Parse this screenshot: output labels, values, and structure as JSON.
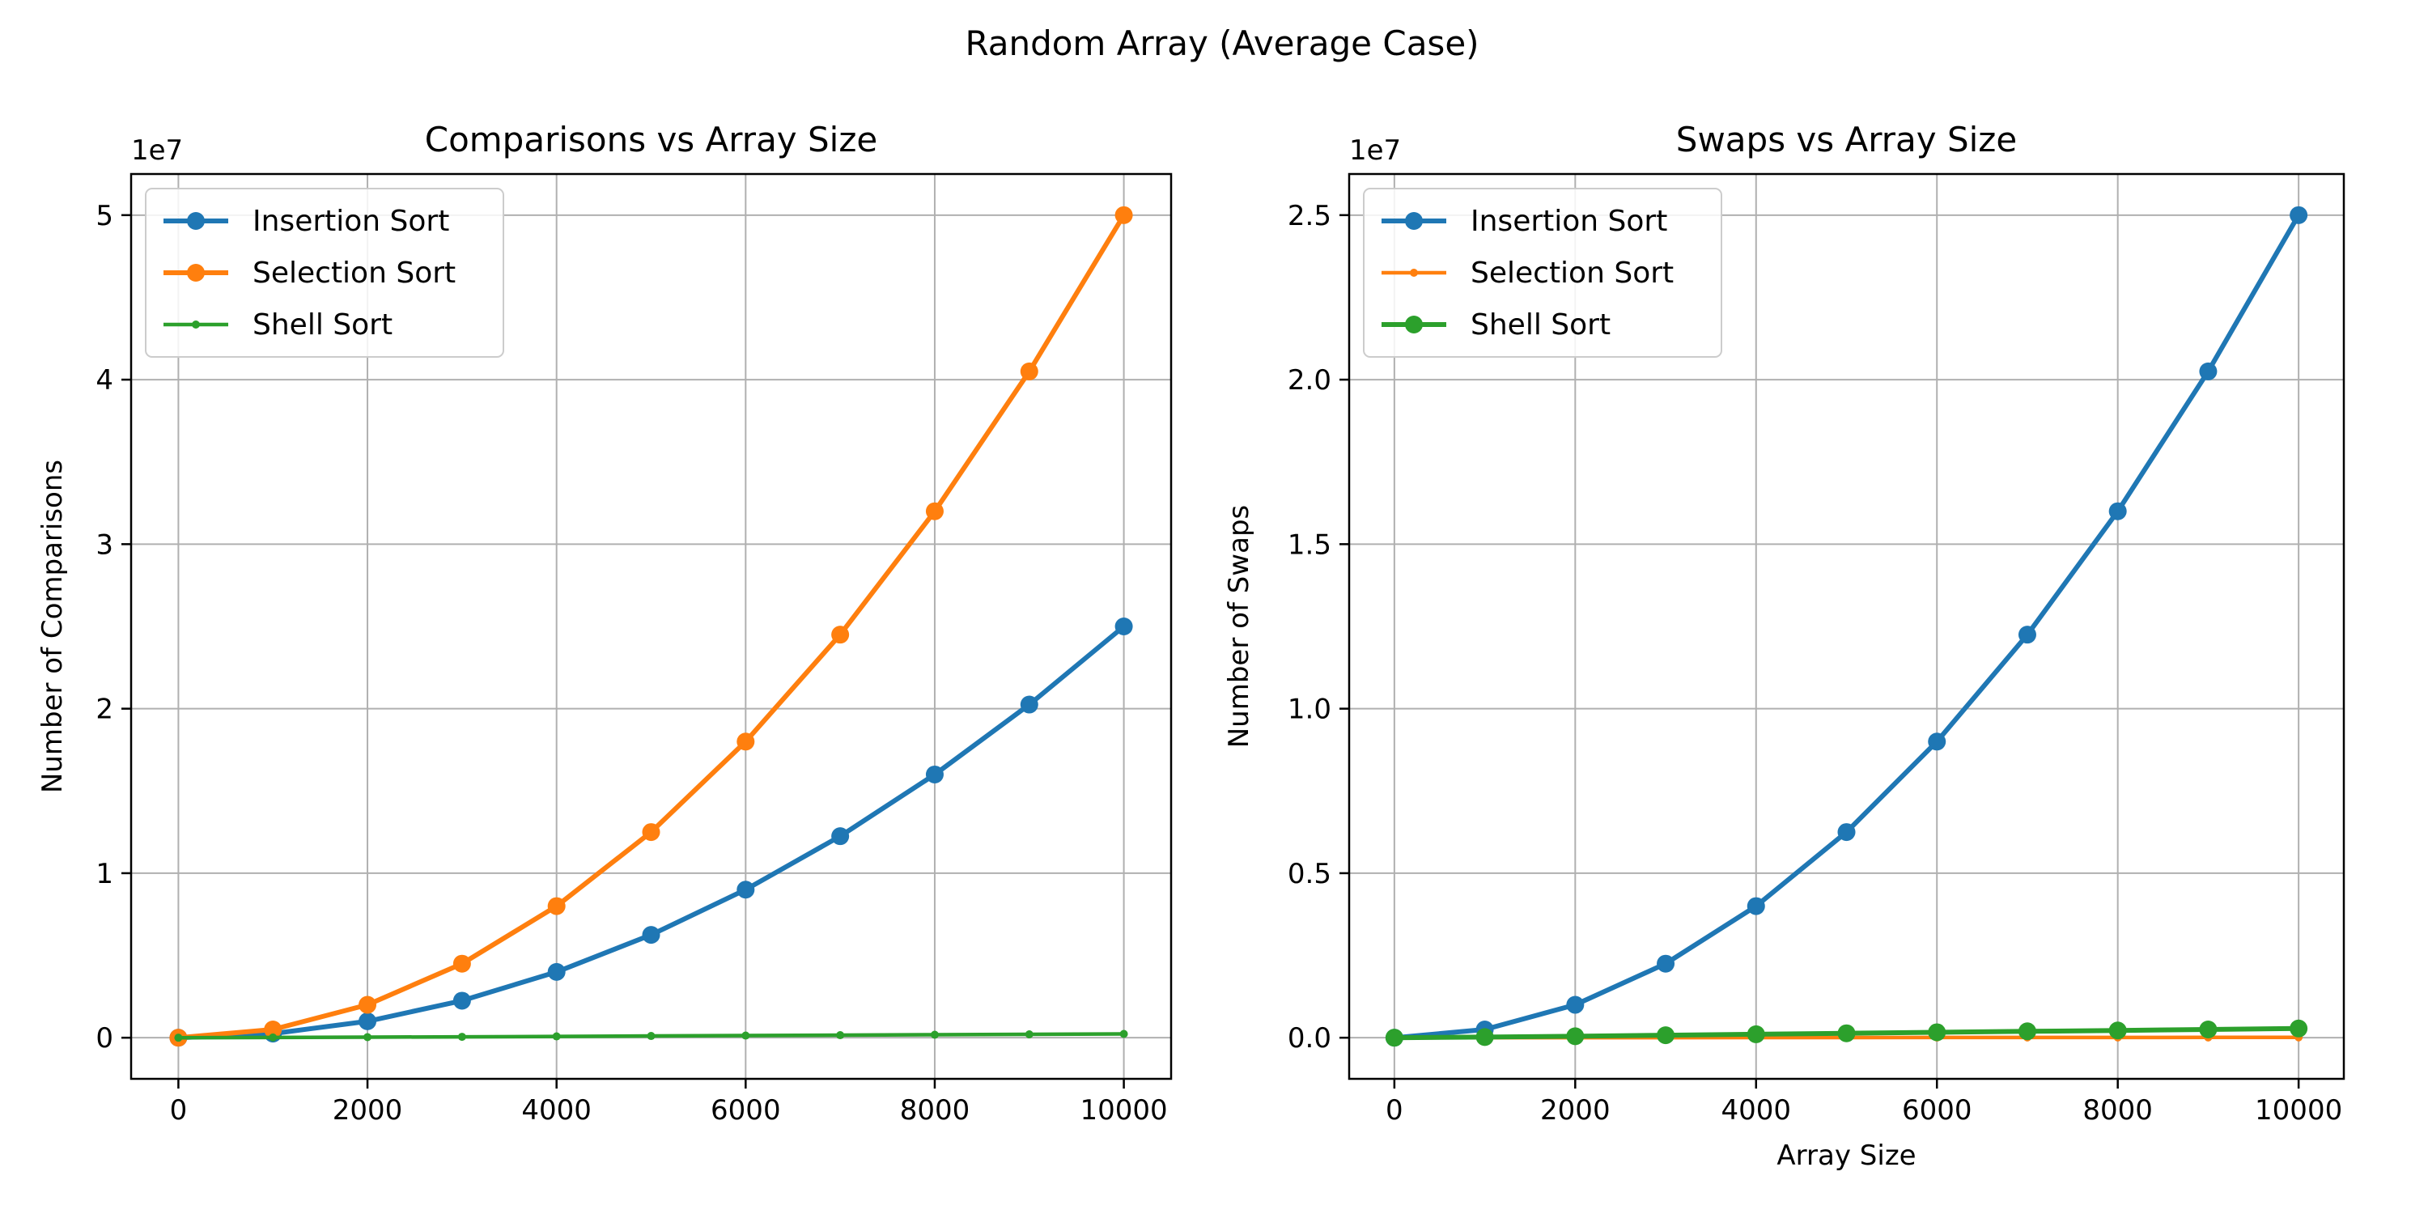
{
  "figure": {
    "title": "Random Array (Average Case)"
  },
  "colors": {
    "blue": "#1f77b4",
    "orange": "#ff7f0e",
    "green": "#2ca02c",
    "grid": "#b0b0b0"
  },
  "chart_data": [
    {
      "type": "line",
      "title": "Comparisons vs Array Size",
      "xlabel": "",
      "ylabel": "Number of Comparisons",
      "y_offset_label": "1e7",
      "xlim": [
        -500,
        10500
      ],
      "ylim": [
        -2500000,
        52500000
      ],
      "x_ticks": [
        0,
        2000,
        4000,
        6000,
        8000,
        10000
      ],
      "x_tick_labels": [
        "0",
        "2000",
        "4000",
        "6000",
        "8000",
        "10000"
      ],
      "y_ticks": [
        0,
        10000000,
        20000000,
        30000000,
        40000000,
        50000000
      ],
      "y_tick_labels": [
        "0",
        "1",
        "2",
        "3",
        "4",
        "5"
      ],
      "grid": true,
      "legend": "top-left",
      "series": [
        {
          "name": "Insertion Sort",
          "color": "#1f77b4",
          "marker": "large",
          "x": [
            0,
            1000,
            2000,
            3000,
            4000,
            5000,
            6000,
            7000,
            8000,
            9000,
            10000
          ],
          "y": [
            0,
            250000,
            1000000,
            2250000,
            4000000,
            6250000,
            9000000,
            12250000,
            16000000,
            20250000,
            25000000
          ]
        },
        {
          "name": "Selection Sort",
          "color": "#ff7f0e",
          "marker": "large",
          "x": [
            0,
            1000,
            2000,
            3000,
            4000,
            5000,
            6000,
            7000,
            8000,
            9000,
            10000
          ],
          "y": [
            0,
            500000,
            2000000,
            4500000,
            8000000,
            12500000,
            18000000,
            24500000,
            32000000,
            40500000,
            50000000
          ]
        },
        {
          "name": "Shell Sort",
          "color": "#2ca02c",
          "marker": "small",
          "x": [
            0,
            1000,
            2000,
            3000,
            4000,
            5000,
            6000,
            7000,
            8000,
            9000,
            10000
          ],
          "y": [
            0,
            15000,
            35000,
            55000,
            80000,
            105000,
            130000,
            155000,
            180000,
            205000,
            230000
          ]
        }
      ]
    },
    {
      "type": "line",
      "title": "Swaps vs Array Size",
      "xlabel": "Array Size",
      "ylabel": "Number of Swaps",
      "y_offset_label": "1e7",
      "xlim": [
        -500,
        10500
      ],
      "ylim": [
        -1250000,
        26250000
      ],
      "x_ticks": [
        0,
        2000,
        4000,
        6000,
        8000,
        10000
      ],
      "x_tick_labels": [
        "0",
        "2000",
        "4000",
        "6000",
        "8000",
        "10000"
      ],
      "y_ticks": [
        0,
        5000000,
        10000000,
        15000000,
        20000000,
        25000000
      ],
      "y_tick_labels": [
        "0.0",
        "0.5",
        "1.0",
        "1.5",
        "2.0",
        "2.5"
      ],
      "grid": true,
      "legend": "top-left",
      "series": [
        {
          "name": "Insertion Sort",
          "color": "#1f77b4",
          "marker": "large",
          "x": [
            0,
            1000,
            2000,
            3000,
            4000,
            5000,
            6000,
            7000,
            8000,
            9000,
            10000
          ],
          "y": [
            0,
            250000,
            1000000,
            2250000,
            4000000,
            6250000,
            9000000,
            12250000,
            16000000,
            20250000,
            25000000
          ]
        },
        {
          "name": "Selection Sort",
          "color": "#ff7f0e",
          "marker": "small",
          "x": [
            0,
            1000,
            2000,
            3000,
            4000,
            5000,
            6000,
            7000,
            8000,
            9000,
            10000
          ],
          "y": [
            0,
            1000,
            2000,
            3000,
            4000,
            5000,
            6000,
            7000,
            8000,
            9000,
            10000
          ]
        },
        {
          "name": "Shell Sort",
          "color": "#2ca02c",
          "marker": "large",
          "x": [
            0,
            1000,
            2000,
            3000,
            4000,
            5000,
            6000,
            7000,
            8000,
            9000,
            10000
          ],
          "y": [
            0,
            20000,
            45000,
            75000,
            105000,
            135000,
            165000,
            195000,
            220000,
            250000,
            280000
          ]
        }
      ]
    }
  ]
}
